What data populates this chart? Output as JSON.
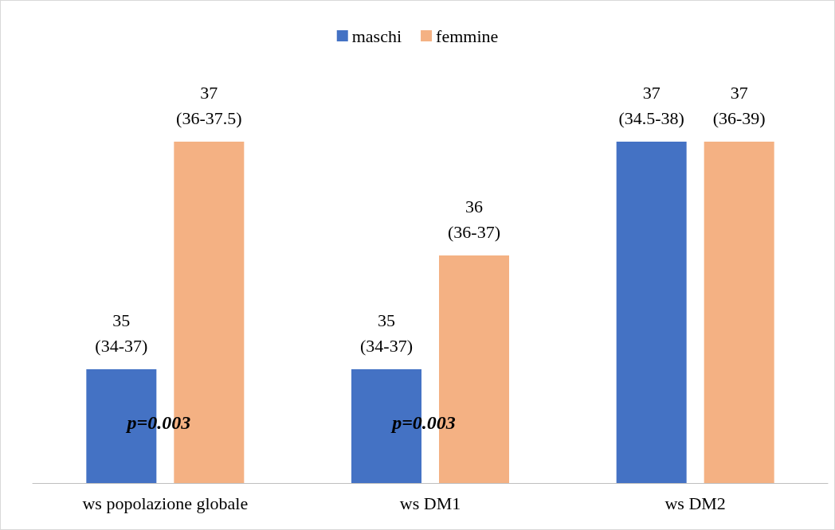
{
  "chart_data": {
    "type": "bar",
    "categories": [
      "ws popolazione globale",
      "ws DM1",
      "ws DM2"
    ],
    "series": [
      {
        "name": "maschi",
        "color": "#4472c4",
        "values": [
          35,
          35,
          37
        ],
        "value_labels": [
          "35\n(34-37)",
          "35\n(34-37)",
          "37\n(34.5-38)"
        ]
      },
      {
        "name": "femmine",
        "color": "#f4b183",
        "values": [
          37,
          36,
          37
        ],
        "value_labels": [
          "37\n(36-37.5)",
          "36\n(36-37)",
          "37\n(36-39)"
        ]
      }
    ],
    "ylim": [
      34,
      37
    ],
    "tick_labels": "x",
    "grid": false,
    "legend": "top",
    "annotations": [
      "p=0.003",
      "p=0.003"
    ]
  }
}
